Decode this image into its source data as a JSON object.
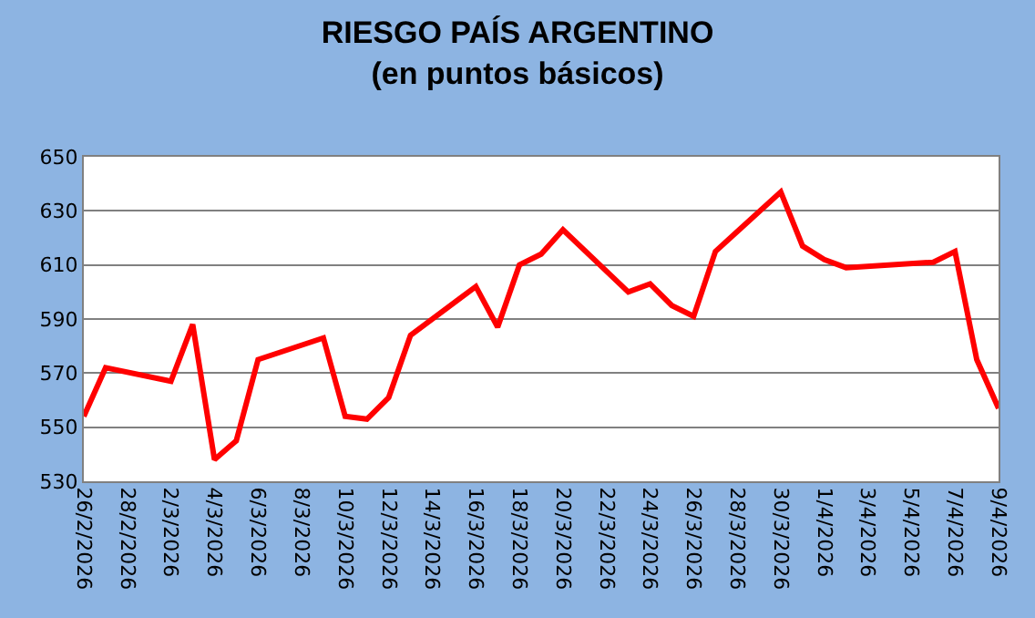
{
  "chart_data": {
    "type": "line",
    "title": "RIESGO PAÍS ARGENTINO\n(en puntos básicos)",
    "x": [
      "2026-02-26",
      "2026-02-27",
      "2026-03-02",
      "2026-03-03",
      "2026-03-04",
      "2026-03-05",
      "2026-03-06",
      "2026-03-09",
      "2026-03-10",
      "2026-03-11",
      "2026-03-12",
      "2026-03-13",
      "2026-03-16",
      "2026-03-17",
      "2026-03-18",
      "2026-03-19",
      "2026-03-20",
      "2026-03-23",
      "2026-03-24",
      "2026-03-25",
      "2026-03-26",
      "2026-03-27",
      "2026-03-30",
      "2026-03-31",
      "2026-04-01",
      "2026-04-02",
      "2026-04-06",
      "2026-04-07",
      "2026-04-08",
      "2026-04-09"
    ],
    "series": [
      {
        "color": "#ff0000",
        "values": [
          554,
          572,
          567,
          588,
          538,
          545,
          575,
          583,
          554,
          553,
          561,
          584,
          602,
          587,
          610,
          614,
          623,
          600,
          603,
          595,
          591,
          615,
          637,
          617,
          612,
          609,
          611,
          615,
          575,
          557
        ]
      }
    ],
    "ylim": [
      530,
      650
    ],
    "yticks": [
      530,
      550,
      570,
      590,
      610,
      630,
      650
    ],
    "xlim": [
      "2026-02-26",
      "2026-04-09"
    ],
    "xticks": [
      {
        "value": "2026-02-26",
        "label": "26/2/2026"
      },
      {
        "value": "2026-02-28",
        "label": "28/2/2026"
      },
      {
        "value": "2026-03-02",
        "label": "2/3/2026"
      },
      {
        "value": "2026-03-04",
        "label": "4/3/2026"
      },
      {
        "value": "2026-03-06",
        "label": "6/3/2026"
      },
      {
        "value": "2026-03-08",
        "label": "8/3/2026"
      },
      {
        "value": "2026-03-10",
        "label": "10/3/2026"
      },
      {
        "value": "2026-03-12",
        "label": "12/3/2026"
      },
      {
        "value": "2026-03-14",
        "label": "14/3/2026"
      },
      {
        "value": "2026-03-16",
        "label": "16/3/2026"
      },
      {
        "value": "2026-03-18",
        "label": "18/3/2026"
      },
      {
        "value": "2026-03-20",
        "label": "20/3/2026"
      },
      {
        "value": "2026-03-22",
        "label": "22/3/2026"
      },
      {
        "value": "2026-03-24",
        "label": "24/3/2026"
      },
      {
        "value": "2026-03-26",
        "label": "26/3/2026"
      },
      {
        "value": "2026-03-28",
        "label": "28/3/2026"
      },
      {
        "value": "2026-03-30",
        "label": "30/3/2026"
      },
      {
        "value": "2026-04-01",
        "label": "1/4/2026"
      },
      {
        "value": "2026-04-03",
        "label": "3/4/2026"
      },
      {
        "value": "2026-04-05",
        "label": "5/4/2026"
      },
      {
        "value": "2026-04-07",
        "label": "7/4/2026"
      },
      {
        "value": "2026-04-09",
        "label": "9/4/2026"
      }
    ],
    "grid": "y",
    "marker": "none",
    "line_style": "solid"
  }
}
